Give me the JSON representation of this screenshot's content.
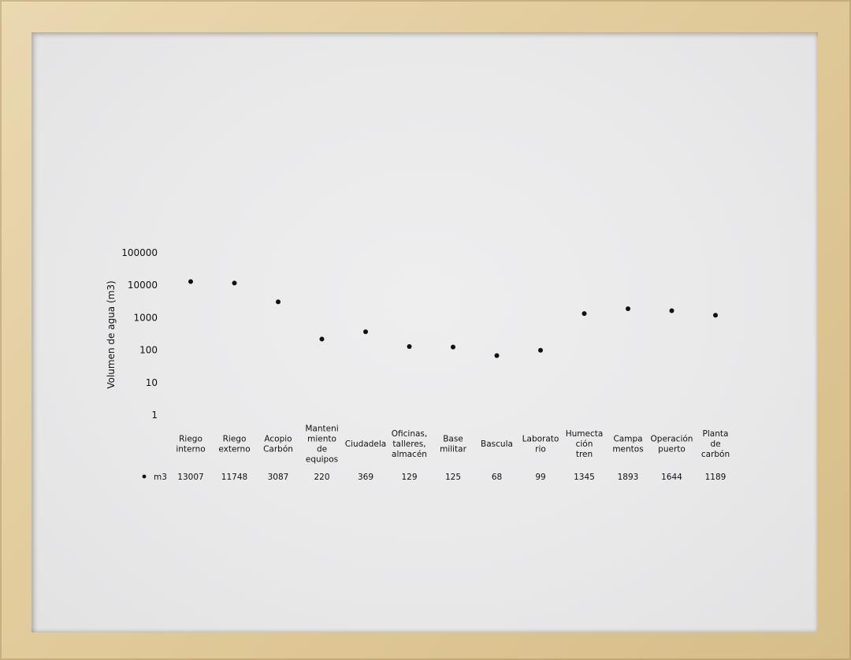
{
  "chart_data": {
    "type": "scatter",
    "yscale": "log",
    "ylim": [
      1,
      100000
    ],
    "yticks": [
      "100000",
      "10000",
      "1000",
      "100",
      "10",
      "1"
    ],
    "ylabel": "Volumen de agua (m3)",
    "categories": [
      "Riego interno",
      "Riego externo",
      "Acopio Carbón",
      "Manteni miento de equipos",
      "Ciudadela",
      "Oficinas, talleres, almacén",
      "Base militar",
      "Bascula",
      "Laborato rio",
      "Humecta ción tren",
      "Campa mentos",
      "Operación puerto",
      "Planta de carbón"
    ],
    "series": [
      {
        "name": "m3",
        "values": [
          13007,
          11748,
          3087,
          220,
          369,
          129,
          125,
          68,
          99,
          1345,
          1893,
          1644,
          1189
        ],
        "value_labels": [
          "13007",
          "11748",
          "3087",
          "220",
          "369",
          "129",
          "125",
          "68",
          "99",
          "1345",
          "1893",
          "1644",
          "1189"
        ],
        "color": "#111111"
      }
    ],
    "legend_placement": "bottom-left (data table row)",
    "grid": false
  }
}
